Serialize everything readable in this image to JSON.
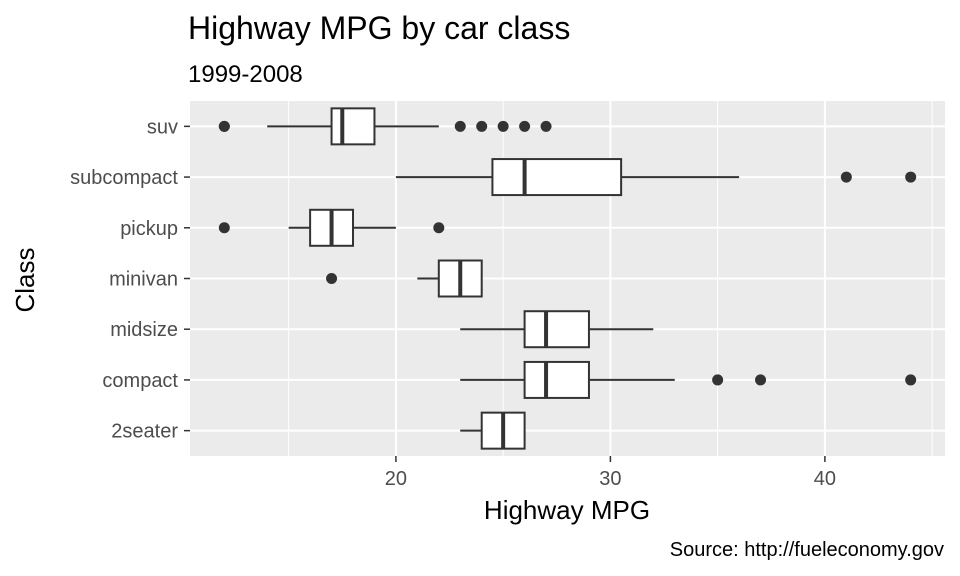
{
  "chart_data": {
    "type": "boxplot",
    "title": "Highway MPG by car class",
    "subtitle": "1999-2008",
    "xlabel": "Highway MPG",
    "ylabel": "Class",
    "caption": "Source: http://fueleconomy.gov",
    "xlim": [
      10.4,
      45.6
    ],
    "x_ticks": [
      20,
      30,
      40
    ],
    "x_minor": [
      15,
      25,
      35,
      45
    ],
    "grid": true,
    "categories": [
      "suv",
      "subcompact",
      "pickup",
      "minivan",
      "midsize",
      "compact",
      "2seater"
    ],
    "boxes": [
      {
        "category": "suv",
        "whisker_low": 14,
        "q1": 17,
        "median": 17.5,
        "q3": 19,
        "whisker_high": 22,
        "outliers": [
          12,
          12,
          23,
          24,
          25,
          26,
          27
        ]
      },
      {
        "category": "subcompact",
        "whisker_low": 20,
        "q1": 24.5,
        "median": 26,
        "q3": 30.5,
        "whisker_high": 36,
        "outliers": [
          41,
          44
        ]
      },
      {
        "category": "pickup",
        "whisker_low": 15,
        "q1": 16,
        "median": 17,
        "q3": 18,
        "whisker_high": 20,
        "outliers": [
          12,
          22
        ]
      },
      {
        "category": "minivan",
        "whisker_low": 21,
        "q1": 22,
        "median": 23,
        "q3": 24,
        "whisker_high": 24,
        "outliers": [
          17
        ]
      },
      {
        "category": "midsize",
        "whisker_low": 23,
        "q1": 26,
        "median": 27,
        "q3": 29,
        "whisker_high": 32,
        "outliers": []
      },
      {
        "category": "compact",
        "whisker_low": 23,
        "q1": 26,
        "median": 27,
        "q3": 29,
        "whisker_high": 33,
        "outliers": [
          35,
          37,
          44
        ]
      },
      {
        "category": "2seater",
        "whisker_low": 23,
        "q1": 24,
        "median": 25,
        "q3": 26,
        "whisker_high": 26,
        "outliers": []
      }
    ],
    "colors": {
      "panel": "#ebebeb",
      "grid": "#ffffff",
      "box_fill": "#ffffff",
      "box_stroke": "#333333",
      "outlier": "#333333"
    }
  }
}
